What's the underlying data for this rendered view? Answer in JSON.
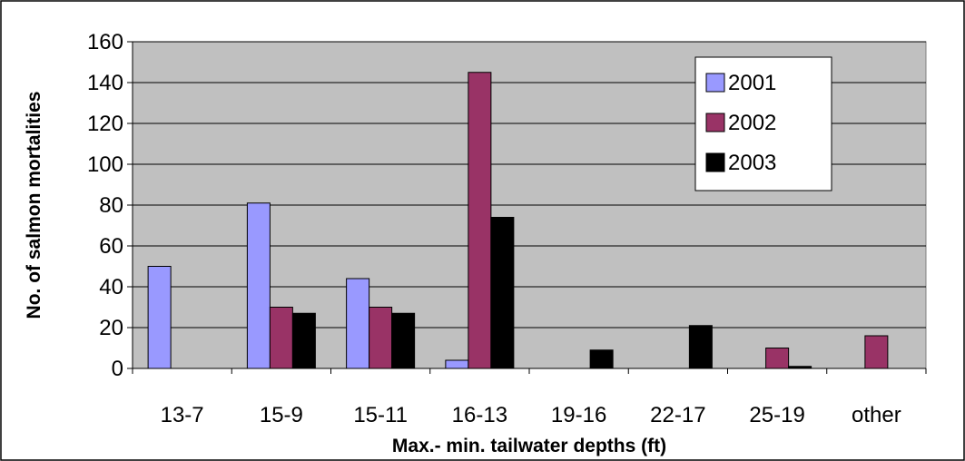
{
  "chart_data": {
    "type": "bar",
    "categories": [
      "13-7",
      "15-9",
      "15-11",
      "16-13",
      "19-16",
      "22-17",
      "25-19",
      "other"
    ],
    "series": [
      {
        "name": "2001",
        "values": [
          50,
          81,
          44,
          4,
          0,
          0,
          0,
          0
        ]
      },
      {
        "name": "2002",
        "values": [
          0,
          30,
          30,
          145,
          0,
          0,
          10,
          16
        ]
      },
      {
        "name": "2003",
        "values": [
          0,
          27,
          27,
          74,
          9,
          21,
          1,
          0
        ]
      }
    ],
    "title": "",
    "xlabel": "Max.- min. tailwater depths (ft)",
    "ylabel": "No. of salmon mortalities",
    "ylim": [
      0,
      160
    ],
    "yticks": [
      0,
      20,
      40,
      60,
      80,
      100,
      120,
      140,
      160
    ],
    "grid": true,
    "legend_position": "top-right",
    "colors": {
      "plot_background": "#c0c0c0",
      "series": [
        "#9999ff",
        "#993366",
        "#000000"
      ],
      "gridline": "#000000"
    }
  }
}
